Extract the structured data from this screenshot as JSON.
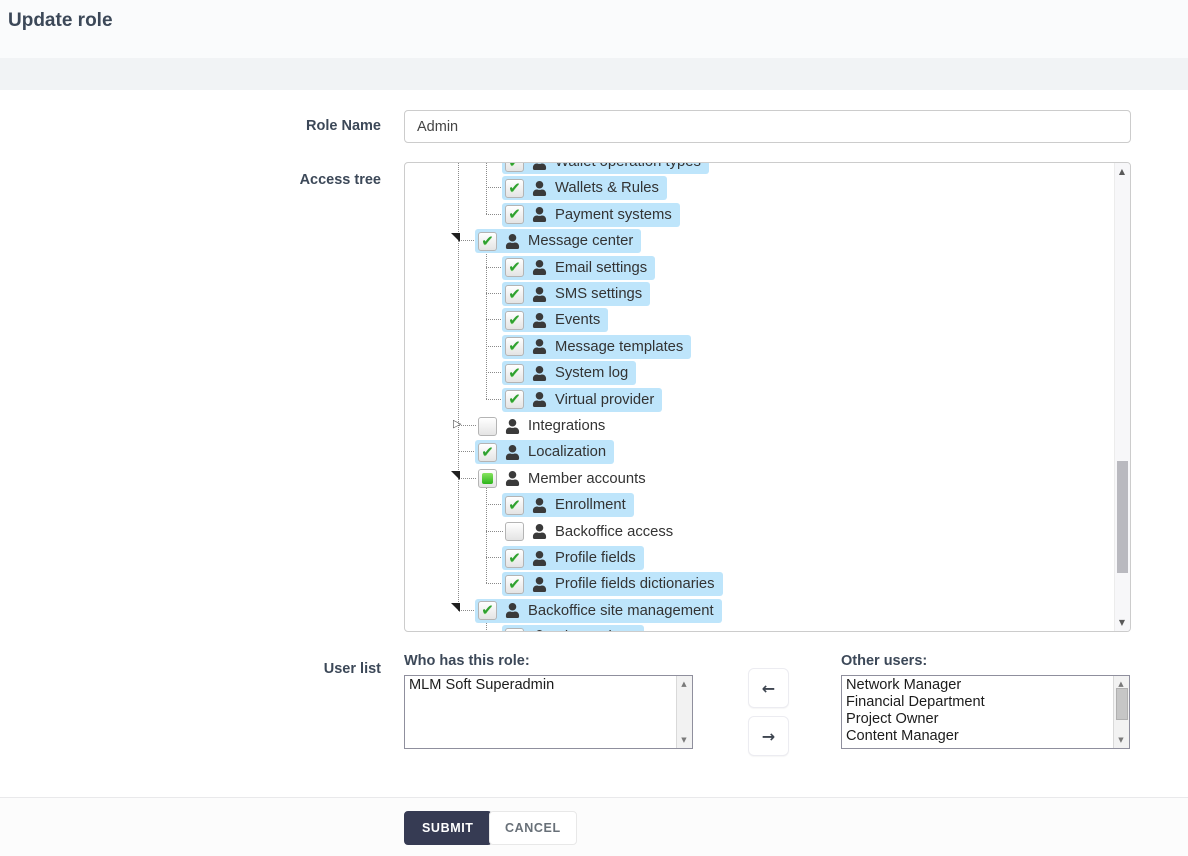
{
  "header": {
    "title": "Update role"
  },
  "form": {
    "role_name_label": "Role Name",
    "role_name_value": "Admin",
    "access_tree_label": "Access tree",
    "user_list_label": "User list"
  },
  "tree": {
    "rows": [
      {
        "label": "Wallet operation types",
        "depth": 3,
        "state": "checked",
        "highlighted": true,
        "expander": "none"
      },
      {
        "label": "Wallets & Rules",
        "depth": 3,
        "state": "checked",
        "highlighted": true,
        "expander": "none"
      },
      {
        "label": "Payment systems",
        "depth": 3,
        "state": "checked",
        "highlighted": true,
        "expander": "none"
      },
      {
        "label": "Message center",
        "depth": 2,
        "state": "checked",
        "highlighted": true,
        "expander": "open"
      },
      {
        "label": "Email settings",
        "depth": 3,
        "state": "checked",
        "highlighted": true,
        "expander": "none"
      },
      {
        "label": "SMS settings",
        "depth": 3,
        "state": "checked",
        "highlighted": true,
        "expander": "none"
      },
      {
        "label": "Events",
        "depth": 3,
        "state": "checked",
        "highlighted": true,
        "expander": "none"
      },
      {
        "label": "Message templates",
        "depth": 3,
        "state": "checked",
        "highlighted": true,
        "expander": "none"
      },
      {
        "label": "System log",
        "depth": 3,
        "state": "checked",
        "highlighted": true,
        "expander": "none"
      },
      {
        "label": "Virtual provider",
        "depth": 3,
        "state": "checked",
        "highlighted": true,
        "expander": "none"
      },
      {
        "label": "Integrations",
        "depth": 2,
        "state": "unchecked",
        "highlighted": false,
        "expander": "closed"
      },
      {
        "label": "Localization",
        "depth": 2,
        "state": "checked",
        "highlighted": true,
        "expander": "none"
      },
      {
        "label": "Member accounts",
        "depth": 2,
        "state": "partial",
        "highlighted": false,
        "expander": "open"
      },
      {
        "label": "Enrollment",
        "depth": 3,
        "state": "checked",
        "highlighted": true,
        "expander": "none"
      },
      {
        "label": "Backoffice access",
        "depth": 3,
        "state": "unchecked",
        "highlighted": false,
        "expander": "none"
      },
      {
        "label": "Profile fields",
        "depth": 3,
        "state": "checked",
        "highlighted": true,
        "expander": "none"
      },
      {
        "label": "Profile fields dictionaries",
        "depth": 3,
        "state": "checked",
        "highlighted": true,
        "expander": "none"
      },
      {
        "label": "Backoffice site management",
        "depth": 2,
        "state": "checked",
        "highlighted": true,
        "expander": "open"
      },
      {
        "label": "Site settings",
        "depth": 3,
        "state": "checked",
        "highlighted": true,
        "expander": "none"
      }
    ]
  },
  "user_lists": {
    "left_title": "Who has this role:",
    "left_items": [
      "MLM Soft Superadmin"
    ],
    "right_title": "Other users:",
    "right_items": [
      "Network Manager",
      "Financial Department",
      "Project Owner",
      "Content Manager"
    ]
  },
  "icons": {
    "transfer_left": "←",
    "transfer_right": "→",
    "scroll_up": "▲",
    "scroll_down": "▼",
    "expander_closed": "▷"
  },
  "footer": {
    "submit_label": "SUBMIT",
    "cancel_label": "CANCEL"
  },
  "colors": {
    "node_highlight": "#bee5fb",
    "check_green": "#2fa12f",
    "submit_bg": "#363b53",
    "label_text": "#3c4858"
  }
}
